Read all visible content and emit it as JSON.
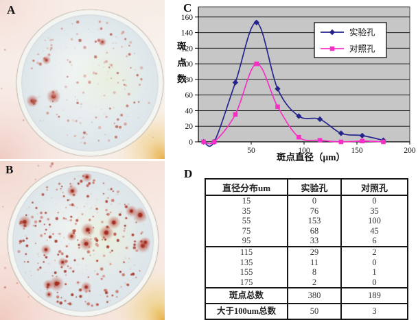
{
  "panel_labels": {
    "a": "A",
    "b": "B",
    "c": "C",
    "d": "D"
  },
  "photos": {
    "a": {
      "name": "elispot-well-few-spots",
      "surround_color": "#f7ece6",
      "corner_pink": "#eec3ba",
      "blob_color": "#e9bd5d",
      "dish_color": "#e7edef",
      "dish_highlight": "#f0f4f2",
      "green_tint": "#e8f0d8",
      "rim_color": "#f3f5f3",
      "spot_count": 115,
      "faint_speckle_count": 70,
      "big_spot_ratio": 0.03,
      "surround_speckles": 6,
      "spot_colors": [
        "rgba(193,106,96,0.85)",
        "rgba(206,130,120,0.7)",
        "rgba(172,82,70,0.8)",
        "rgba(216,150,140,0.6)"
      ],
      "big_core_color": "rgba(170,60,48,0.9)",
      "seed": 12345
    },
    "b": {
      "name": "elispot-well-many-spots",
      "surround_color": "#f5e2da",
      "corner_pink": "#efc3b8",
      "blob_color": "#e7c158",
      "dish_color": "#e4eaec",
      "dish_highlight": "#eef2f1",
      "green_tint": "#e9f1d6",
      "rim_color": "#f4f6f4",
      "spot_count": 235,
      "faint_speckle_count": 150,
      "big_spot_ratio": 0.1,
      "surround_speckles": 14,
      "spot_colors": [
        "rgba(178,72,58,0.9)",
        "rgba(196,96,80,0.8)",
        "rgba(158,52,40,0.9)",
        "rgba(208,122,108,0.7)"
      ],
      "big_core_color": "rgba(162,42,30,0.95)",
      "seed": 67890
    }
  },
  "chart_data": {
    "type": "line",
    "title": "",
    "xlabel": "斑点直径（μm）",
    "ylabel": "斑点数",
    "ylabel_chars": [
      "斑",
      "点",
      "数"
    ],
    "x": [
      5,
      15,
      35,
      55,
      75,
      95,
      115,
      135,
      155,
      175
    ],
    "series": [
      {
        "name": "实验孔",
        "marker": "diamond",
        "color": "#24248c",
        "values": [
          0,
          0,
          76,
          153,
          68,
          33,
          29,
          11,
          8,
          2
        ]
      },
      {
        "name": "对照孔",
        "marker": "square",
        "color": "#f62fc5",
        "values": [
          0,
          0,
          35,
          100,
          45,
          6,
          2,
          0,
          1,
          0
        ]
      }
    ],
    "xticks": [
      50,
      100,
      150,
      200
    ],
    "yticks": [
      0,
      20,
      40,
      60,
      80,
      100,
      120,
      140,
      160
    ],
    "xlim": [
      0,
      200
    ],
    "ylim": [
      0,
      173
    ],
    "plot_bg": "#c6c6c6",
    "grid": "horizontal-black",
    "legend_position": "top-right",
    "smoothed": true
  },
  "table": {
    "headers": [
      "直径分布um",
      "实验孔",
      "对照孔"
    ],
    "rows_group1": [
      [
        "15",
        "0",
        "0"
      ],
      [
        "35",
        "76",
        "35"
      ],
      [
        "55",
        "153",
        "100"
      ],
      [
        "75",
        "68",
        "45"
      ],
      [
        "95",
        "33",
        "6"
      ]
    ],
    "rows_group2": [
      [
        "115",
        "29",
        "2"
      ],
      [
        "135",
        "11",
        "0"
      ],
      [
        "155",
        "8",
        "1"
      ],
      [
        "175",
        "2",
        "0"
      ]
    ],
    "total_row": [
      "斑点总数",
      "380",
      "189"
    ],
    "over100_row": [
      "大于100um总数",
      "50",
      "3"
    ]
  }
}
